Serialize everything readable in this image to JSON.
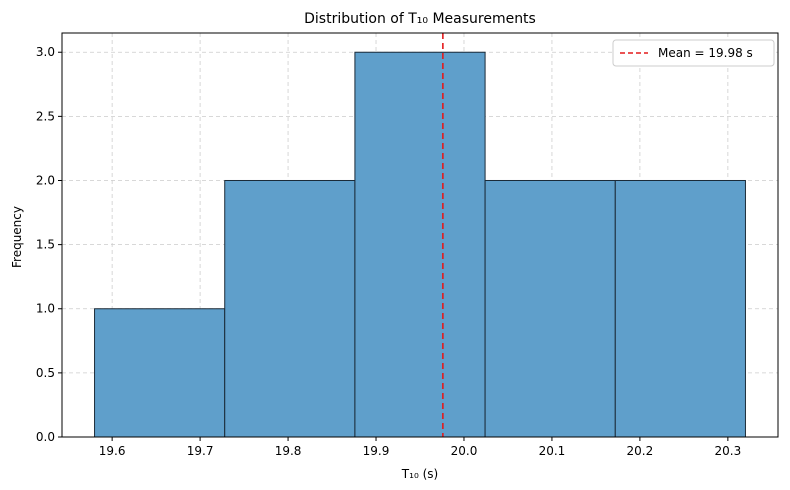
{
  "chart_data": {
    "type": "bar",
    "title": "Distribution of T₁₀ Measurements",
    "xlabel": "T₁₀ (s)",
    "ylabel": "Frequency",
    "bins": [
      {
        "start": 19.58,
        "end": 19.728,
        "count": 1
      },
      {
        "start": 19.728,
        "end": 19.876,
        "count": 2
      },
      {
        "start": 19.876,
        "end": 20.024,
        "count": 3
      },
      {
        "start": 20.024,
        "end": 20.172,
        "count": 2
      },
      {
        "start": 20.172,
        "end": 20.32,
        "count": 2
      }
    ],
    "xlim": [
      19.543,
      20.357
    ],
    "ylim": [
      0,
      3.15
    ],
    "xticks": [
      19.6,
      19.7,
      19.8,
      19.9,
      20.0,
      20.1,
      20.2,
      20.3
    ],
    "xtick_labels": [
      "19.6",
      "19.7",
      "19.8",
      "19.9",
      "20.0",
      "20.1",
      "20.2",
      "20.3"
    ],
    "yticks": [
      0,
      0.5,
      1.0,
      1.5,
      2.0,
      2.5,
      3.0
    ],
    "ytick_labels": [
      "0.0",
      "0.5",
      "1.0",
      "1.5",
      "2.0",
      "2.5",
      "3.0"
    ],
    "mean_line": {
      "value": 19.976,
      "label": "Mean = 19.98 s"
    },
    "legend": {
      "position": "top-right",
      "entries": [
        "Mean = 19.98 s"
      ]
    },
    "grid": true,
    "colors": {
      "bar_fill": "#5f9fcb",
      "bar_edge": "#1a2a38",
      "mean_line": "#e41a1c",
      "grid": "#cccccc"
    }
  }
}
